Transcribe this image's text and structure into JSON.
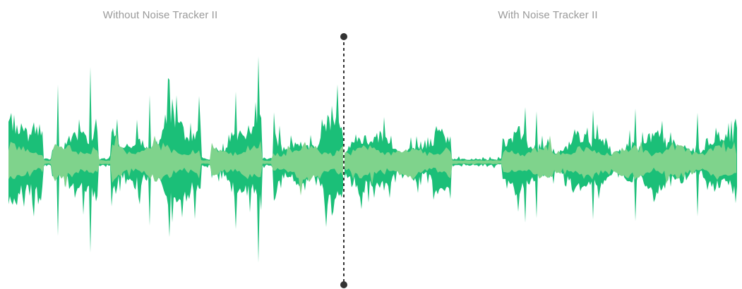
{
  "labels": {
    "left": "Without Noise Tracker II",
    "right": "With Noise Tracker II"
  },
  "colors": {
    "label_text": "#9a9a9a",
    "wave_dark": "#1bbf78",
    "wave_light": "#7fd38c",
    "divider": "#333333",
    "background": "#ffffff"
  },
  "divider": {
    "style": "dashed",
    "handle_icon": "circle-handle"
  }
}
